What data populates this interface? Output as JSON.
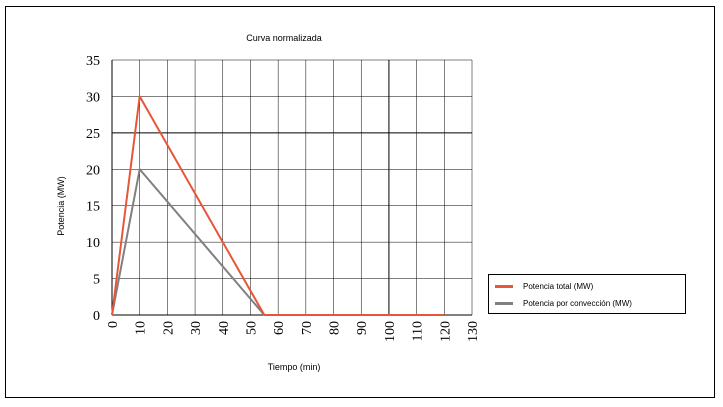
{
  "chart_data": {
    "type": "line",
    "title": "Curva normalizada",
    "xlabel": "Tiempo (min)",
    "ylabel": "Potencia (MW)",
    "xlim": [
      0,
      130
    ],
    "ylim": [
      0,
      35
    ],
    "xticks": [
      0,
      10,
      20,
      30,
      40,
      50,
      60,
      70,
      80,
      90,
      100,
      110,
      120,
      130
    ],
    "yticks": [
      0,
      5,
      10,
      15,
      20,
      25,
      30,
      35
    ],
    "grid": true,
    "legend_position": "right",
    "series": [
      {
        "name": "Potencia total (MW)",
        "color": "#e8563a",
        "points": [
          [
            0,
            0
          ],
          [
            10,
            30
          ],
          [
            55,
            0
          ],
          [
            120,
            0
          ]
        ]
      },
      {
        "name": "Potencia por convección (MW)",
        "color": "#808080",
        "points": [
          [
            0,
            0
          ],
          [
            10,
            20
          ],
          [
            55,
            0
          ],
          [
            120,
            0
          ]
        ]
      }
    ]
  }
}
